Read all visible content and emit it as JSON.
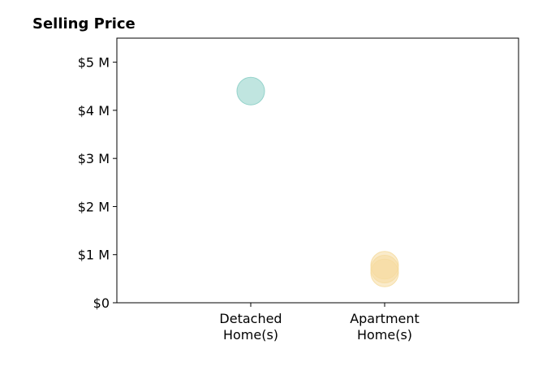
{
  "chart_data": {
    "type": "scatter",
    "title": "Selling Price",
    "xlabel": "",
    "ylabel": "",
    "categories": [
      [
        "Detached",
        "Home(s)"
      ],
      [
        "Apartment",
        "Home(s)"
      ]
    ],
    "ylim": [
      0,
      5500000
    ],
    "yticks": [
      0,
      1000000,
      2000000,
      3000000,
      4000000,
      5000000
    ],
    "ytick_labels": [
      "$0",
      "$1 M",
      "$2 M",
      "$3 M",
      "$4 M",
      "$5 M"
    ],
    "grid": false,
    "legend": "none",
    "points": [
      {
        "category": 0,
        "y": 4400000,
        "color": "#8ccfc6"
      },
      {
        "category": 1,
        "y": 780000,
        "color": "#f5dba0"
      },
      {
        "category": 1,
        "y": 700000,
        "color": "#f5dba0"
      },
      {
        "category": 1,
        "y": 620000,
        "color": "#f5dba0"
      }
    ]
  }
}
